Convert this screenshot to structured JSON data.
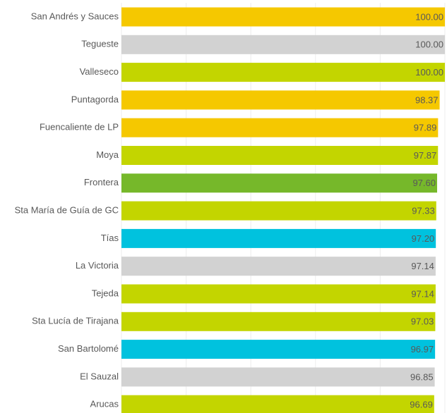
{
  "chart_data": {
    "type": "barh",
    "categories": [
      "San Andrés y Sauces",
      "Tegueste",
      "Valleseco",
      "Puntagorda",
      "Fuencaliente de LP",
      "Moya",
      "Frontera",
      "Sta María de Guía de GC",
      "Tías",
      "La Victoria",
      "Tejeda",
      "Sta Lucía de Tirajana",
      "San Bartolomé",
      "El Sauzal",
      "Arucas"
    ],
    "values": [
      100,
      100,
      100,
      98.37,
      97.89,
      97.87,
      97.6,
      97.33,
      97.2,
      97.14,
      97.14,
      97.03,
      96.97,
      96.85,
      96.69
    ],
    "value_labels": [
      "100.00",
      "100.00",
      "100.00",
      "98.37",
      "97.89",
      "97.87",
      "97.60",
      "97.33",
      "97.20",
      "97.14",
      "97.14",
      "97.03",
      "96.97",
      "96.85",
      "96.69"
    ],
    "colors": [
      "#f5c800",
      "#d2d2d2",
      "#c3d500",
      "#f5c800",
      "#f5c800",
      "#c3d500",
      "#76b82a",
      "#c3d500",
      "#00c2de",
      "#d2d2d2",
      "#c3d500",
      "#c3d500",
      "#00c2de",
      "#d2d2d2",
      "#c3d500"
    ],
    "xlim": [
      0,
      100
    ],
    "xticks": [
      0,
      20,
      40,
      60,
      80,
      100
    ],
    "grid": true
  }
}
